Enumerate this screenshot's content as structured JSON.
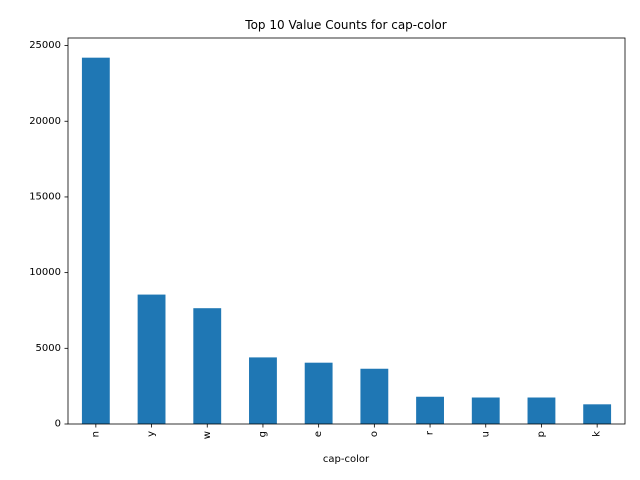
{
  "chart_data": {
    "type": "bar",
    "title": "Top 10 Value Counts for cap-color",
    "xlabel": "cap-color",
    "ylabel": "",
    "categories": [
      "n",
      "y",
      "w",
      "g",
      "e",
      "o",
      "r",
      "u",
      "p",
      "k"
    ],
    "values": [
      24200,
      8550,
      7650,
      4400,
      4050,
      3650,
      1800,
      1750,
      1750,
      1300
    ],
    "ylim": [
      0,
      25500
    ],
    "yticks": [
      0,
      5000,
      10000,
      15000,
      20000,
      25000
    ],
    "grid": false,
    "legend": "none",
    "bar_color": "#1f77b4"
  }
}
